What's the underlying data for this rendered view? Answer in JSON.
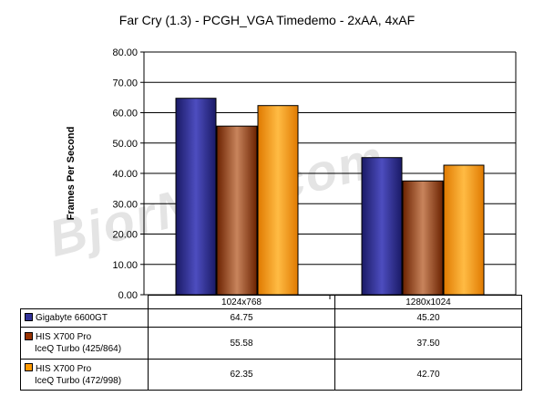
{
  "chart_data": {
    "type": "bar",
    "title": "Far Cry (1.3) - PCGH_VGA Timedemo - 2xAA, 4xAF",
    "ylabel": "Frames Per Second",
    "xlabel": "",
    "ylim": [
      0,
      80
    ],
    "yticks": [
      "0.00",
      "10.00",
      "20.00",
      "30.00",
      "40.00",
      "50.00",
      "60.00",
      "70.00",
      "80.00"
    ],
    "grid": true,
    "legend": "data-table",
    "categories": [
      "1024x768",
      "1280x1024"
    ],
    "series": [
      {
        "name": "Gigabyte 6600GT",
        "name_line2": "",
        "values": [
          64.75,
          45.2
        ],
        "labels": [
          "64.75",
          "45.20"
        ],
        "color": "#333399"
      },
      {
        "name": "HIS X700 Pro",
        "name_line2": "IceQ Turbo (425/864)",
        "values": [
          55.58,
          37.5
        ],
        "labels": [
          "55.58",
          "37.50"
        ],
        "color": "#993300"
      },
      {
        "name": "HIS X700 Pro",
        "name_line2": "IceQ Turbo (472/998)",
        "values": [
          62.35,
          42.7
        ],
        "labels": [
          "62.35",
          "42.70"
        ],
        "color": "#ff9900"
      }
    ]
  },
  "watermark": "BjorN3D.com"
}
